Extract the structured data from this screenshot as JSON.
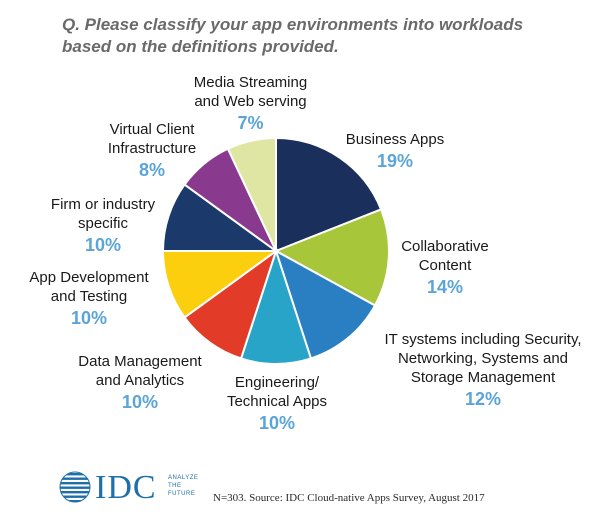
{
  "question": {
    "line1": "Q. Please classify your app environments into workloads",
    "line2": "based on the definitions provided."
  },
  "chart_data": {
    "type": "pie",
    "title": "Q. Please classify your app environments into workloads based on the definitions provided.",
    "start": "12 o'clock, clockwise",
    "slices": [
      {
        "label": "Business Apps",
        "value": 19,
        "pct_label": "19%",
        "color": "#1b2f5c"
      },
      {
        "label": "Collaborative Content",
        "value": 14,
        "pct_label": "14%",
        "color": "#a8c639"
      },
      {
        "label": "IT systems including Security, Networking, Systems and Storage Management",
        "value": 12,
        "pct_label": "12%",
        "color": "#2a7fc2"
      },
      {
        "label": "Engineering/ Technical Apps",
        "value": 10,
        "pct_label": "10%",
        "color": "#29a4c9"
      },
      {
        "label": "Data Management and Analytics",
        "value": 10,
        "pct_label": "10%",
        "color": "#e23b28"
      },
      {
        "label": "App Development and Testing",
        "value": 10,
        "pct_label": "10%",
        "color": "#fbce0e"
      },
      {
        "label": "Firm or industry specific",
        "value": 10,
        "pct_label": "10%",
        "color": "#1b3a6b"
      },
      {
        "label": "Virtual Client Infrastructure",
        "value": 8,
        "pct_label": "8%",
        "color": "#8a3a8e"
      },
      {
        "label": "Media Streaming and Web serving",
        "value": 7,
        "pct_label": "7%",
        "color": "#dfe6a4"
      }
    ]
  },
  "labels": {
    "business": {
      "l1": "Business Apps",
      "pct": "19%"
    },
    "collab": {
      "l1": "Collaborative",
      "l2": "Content",
      "pct": "14%"
    },
    "it": {
      "l1": "IT systems including Security,",
      "l2": "Networking, Systems and",
      "l3": "Storage Management",
      "pct": "12%"
    },
    "eng": {
      "l1": "Engineering/",
      "l2": "Technical Apps",
      "pct": "10%"
    },
    "data": {
      "l1": "Data Management",
      "l2": "and Analytics",
      "pct": "10%"
    },
    "appdev": {
      "l1": "App Development",
      "l2": "and Testing",
      "pct": "10%"
    },
    "firm": {
      "l1": "Firm or industry",
      "l2": "specific",
      "pct": "10%"
    },
    "vci": {
      "l1": "Virtual Client",
      "l2": "Infrastructure",
      "pct": "8%"
    },
    "media": {
      "l1": "Media Streaming",
      "l2": "and Web serving",
      "pct": "7%"
    }
  },
  "logo": {
    "name": "IDC",
    "tag1": "ANALYZE",
    "tag2": "THE",
    "tag3": "FUTURE",
    "color": "#1f6fa8"
  },
  "source": "N=303. Source: IDC Cloud-native Apps Survey, August 2017"
}
